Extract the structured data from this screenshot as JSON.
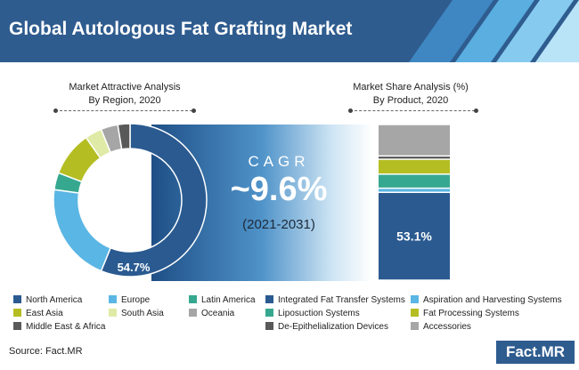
{
  "header": {
    "title": "Global Autologous Fat Grafting Market"
  },
  "region_panel": {
    "title_line1": "Market Attractive Analysis",
    "title_line2": "By Region, 2020"
  },
  "product_panel": {
    "title_line1": "Market Share Analysis (%)",
    "title_line2": "By Product, 2020"
  },
  "cagr": {
    "label": "CAGR",
    "value": "~9.6%",
    "period": "(2021-2031)"
  },
  "source": "Source: Fact.MR",
  "logo": "Fact.MR",
  "chart_data": [
    {
      "type": "pie",
      "categories": [
        "North America",
        "Europe",
        "Latin America",
        "East Asia",
        "South Asia",
        "Oceania",
        "Middle East & Africa"
      ],
      "values": [
        54.7,
        20.5,
        3.5,
        9.2,
        3.5,
        3.5,
        2.5
      ],
      "colors": [
        "#2a5a90",
        "#5ab6e4",
        "#36a890",
        "#b4be22",
        "#dfeaa6",
        "#a6a6a6",
        "#595959"
      ],
      "data_labels": [
        "54.7%",
        "",
        "",
        "",
        "",
        "",
        ""
      ],
      "style": "donut"
    },
    {
      "type": "bar",
      "stacked": true,
      "categories": [
        "Integrated Fat Transfer Systems",
        "Aspiration and Harvesting Systems",
        "Liposuction Systems",
        "Fat Processing Systems",
        "De-Epithelialization Devices",
        "Accessories"
      ],
      "values": [
        53.1,
        2.5,
        8.5,
        9.0,
        2.0,
        19.0
      ],
      "colors": [
        "#2a5a90",
        "#5ab6e4",
        "#36a890",
        "#b4be22",
        "#595959",
        "#a6a6a6"
      ],
      "data_labels": [
        "53.1%",
        "",
        "",
        "",
        "",
        ""
      ]
    }
  ],
  "legend_region": [
    {
      "label": "North America",
      "color": "#2a5a90"
    },
    {
      "label": "Europe",
      "color": "#5ab6e4"
    },
    {
      "label": "Latin America",
      "color": "#36a890"
    },
    {
      "label": "East Asia",
      "color": "#b4be22"
    },
    {
      "label": "South Asia",
      "color": "#dfeaa6"
    },
    {
      "label": "Oceania",
      "color": "#a6a6a6"
    },
    {
      "label": "Middle East & Africa",
      "color": "#595959"
    }
  ],
  "legend_product": [
    {
      "label": "Integrated Fat Transfer Systems",
      "color": "#2a5a90"
    },
    {
      "label": "Aspiration and Harvesting Systems",
      "color": "#5ab6e4"
    },
    {
      "label": "Liposuction Systems",
      "color": "#36a890"
    },
    {
      "label": "Fat Processing Systems",
      "color": "#b4be22"
    },
    {
      "label": "De-Epithelialization Devices",
      "color": "#595959"
    },
    {
      "label": "Accessories",
      "color": "#a6a6a6"
    }
  ]
}
